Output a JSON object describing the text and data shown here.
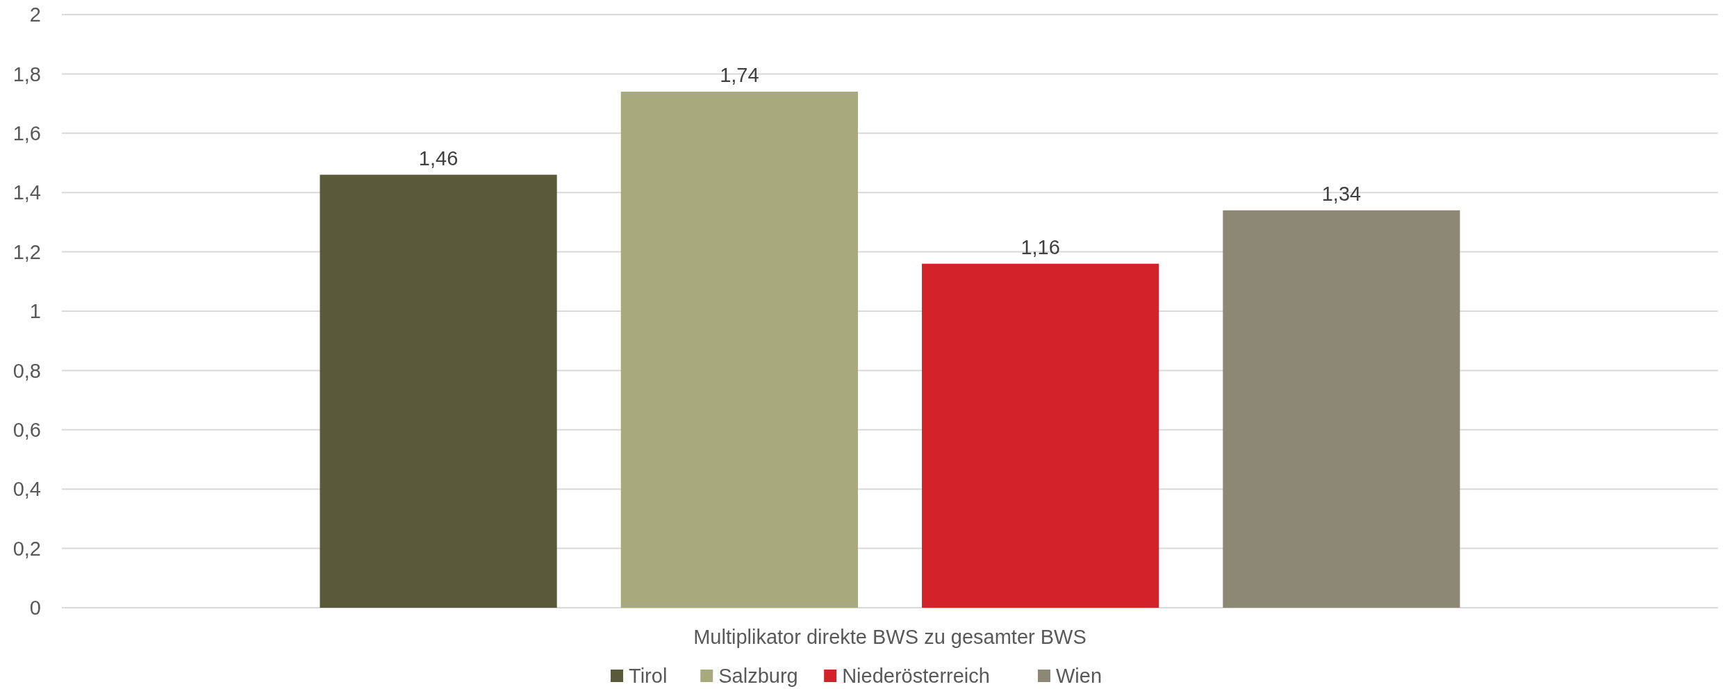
{
  "chart_data": {
    "type": "bar",
    "categories": [
      "Multiplikator direkte BWS zu gesamter BWS"
    ],
    "series": [
      {
        "name": "Tirol",
        "color": "#595a3a",
        "values": [
          1.46
        ],
        "value_labels": [
          "1,46"
        ]
      },
      {
        "name": "Salzburg",
        "color": "#a8a97c",
        "values": [
          1.74
        ],
        "value_labels": [
          "1,74"
        ]
      },
      {
        "name": "Niederösterreich",
        "color": "#d2232a",
        "values": [
          1.16
        ],
        "value_labels": [
          "1,16"
        ]
      },
      {
        "name": "Wien",
        "color": "#8d8776",
        "values": [
          1.34
        ],
        "value_labels": [
          "1,34"
        ]
      }
    ],
    "ylim": [
      0,
      2
    ],
    "yticks": [
      0,
      {
        "value": 0.2,
        "label": "0,2"
      },
      {
        "value": 0.4,
        "label": "0,4"
      },
      {
        "value": 0.6,
        "label": "0,6"
      },
      {
        "value": 0.8,
        "label": "0,8"
      },
      1,
      {
        "value": 1.2,
        "label": "1,2"
      },
      {
        "value": 1.4,
        "label": "1,4"
      },
      {
        "value": 1.6,
        "label": "1,6"
      },
      {
        "value": 1.8,
        "label": "1,8"
      },
      2
    ],
    "grid": "y",
    "legend": "bottom"
  }
}
